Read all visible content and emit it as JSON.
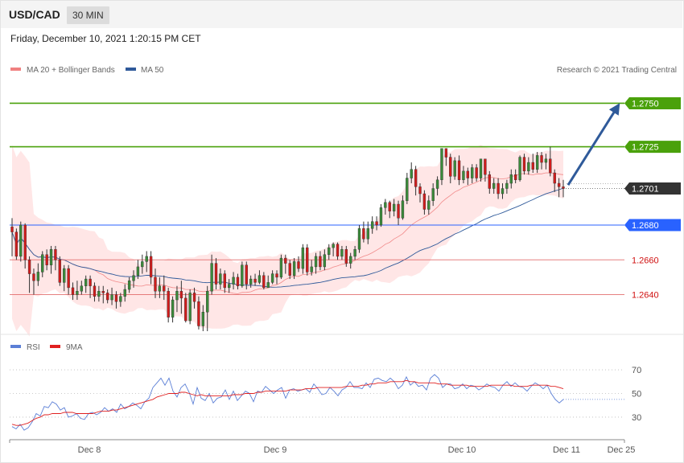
{
  "header": {
    "symbol": "USD/CAD",
    "timeframe": "30 MIN"
  },
  "datetime": "Friday, December 10, 2021 1:20:15 PM CET",
  "legend": {
    "ma20": {
      "label": "MA 20 + Bollinger Bands",
      "color": "#f08080"
    },
    "ma50": {
      "label": "MA 50",
      "color": "#2f5a9a"
    },
    "rsi": {
      "label": "RSI",
      "color": "#5b7fd6"
    },
    "ma9": {
      "label": "9MA",
      "color": "#e02020"
    }
  },
  "copyright": "Research © 2021 Trading Central",
  "chart_data": {
    "type": "candlestick",
    "price_range": [
      1.2619,
      1.2765
    ],
    "levels": [
      {
        "value": 1.275,
        "label": "1.2750",
        "kind": "resistance",
        "color": "#4aa10b"
      },
      {
        "value": 1.2725,
        "label": "1.2725",
        "kind": "resistance",
        "color": "#4aa10b"
      },
      {
        "value": 1.2701,
        "label": "1.2701",
        "kind": "current",
        "color": "#333333"
      },
      {
        "value": 1.268,
        "label": "1.2680",
        "kind": "pivot",
        "color": "#2962ff"
      },
      {
        "value": 1.266,
        "label": "1.2660",
        "kind": "support",
        "color": "#e06060"
      },
      {
        "value": 1.264,
        "label": "1.2640",
        "kind": "support",
        "color": "#e06060"
      }
    ],
    "projection": {
      "from": 1.2703,
      "to": 1.2747
    },
    "candles": [
      [
        1.2679,
        1.2676,
        1.2684,
        1.2662
      ],
      [
        1.2676,
        1.2662,
        1.2678,
        1.266
      ],
      [
        1.2662,
        1.268,
        1.2682,
        1.2659
      ],
      [
        1.268,
        1.266,
        1.2681,
        1.2655
      ],
      [
        1.266,
        1.2652,
        1.2662,
        1.2641
      ],
      [
        1.2652,
        1.2648,
        1.2655,
        1.264
      ],
      [
        1.2648,
        1.2653,
        1.2658,
        1.2645
      ],
      [
        1.2653,
        1.2663,
        1.2665,
        1.265
      ],
      [
        1.2663,
        1.2657,
        1.2666,
        1.2654
      ],
      [
        1.2657,
        1.2666,
        1.2668,
        1.2652
      ],
      [
        1.2666,
        1.266,
        1.2668,
        1.2654
      ],
      [
        1.266,
        1.2647,
        1.2662,
        1.2645
      ],
      [
        1.2647,
        1.2655,
        1.2657,
        1.2642
      ],
      [
        1.2655,
        1.2644,
        1.2657,
        1.264
      ],
      [
        1.2644,
        1.264,
        1.2647,
        1.2637
      ],
      [
        1.264,
        1.2642,
        1.2648,
        1.2637
      ],
      [
        1.2642,
        1.2645,
        1.2648,
        1.264
      ],
      [
        1.2645,
        1.2649,
        1.2651,
        1.2641
      ],
      [
        1.2649,
        1.2645,
        1.2651,
        1.2638
      ],
      [
        1.2645,
        1.2639,
        1.2647,
        1.2636
      ],
      [
        1.2639,
        1.2642,
        1.2645,
        1.2636
      ],
      [
        1.2642,
        1.2641,
        1.2645,
        1.2635
      ],
      [
        1.2641,
        1.2637,
        1.2643,
        1.2635
      ],
      [
        1.2637,
        1.264,
        1.2644,
        1.2634
      ],
      [
        1.264,
        1.2636,
        1.2642,
        1.2632
      ],
      [
        1.2636,
        1.2639,
        1.2641,
        1.2633
      ],
      [
        1.2639,
        1.2643,
        1.2646,
        1.2636
      ],
      [
        1.2643,
        1.2648,
        1.265,
        1.2641
      ],
      [
        1.2648,
        1.2651,
        1.2654,
        1.2644
      ],
      [
        1.2651,
        1.2656,
        1.266,
        1.2649
      ],
      [
        1.2656,
        1.2659,
        1.2663,
        1.2652
      ],
      [
        1.2659,
        1.2662,
        1.2665,
        1.2653
      ],
      [
        1.2662,
        1.265,
        1.2665,
        1.2646
      ],
      [
        1.265,
        1.2642,
        1.2655,
        1.2638
      ],
      [
        1.2642,
        1.2645,
        1.265,
        1.2638
      ],
      [
        1.2645,
        1.2642,
        1.2651,
        1.2637
      ],
      [
        1.2642,
        1.2627,
        1.2644,
        1.2624
      ],
      [
        1.2627,
        1.2637,
        1.2639,
        1.2624
      ],
      [
        1.2637,
        1.2642,
        1.2645,
        1.263
      ],
      [
        1.2642,
        1.2638,
        1.2648,
        1.2629
      ],
      [
        1.2638,
        1.2625,
        1.2641,
        1.2624
      ],
      [
        1.2625,
        1.2641,
        1.2643,
        1.2623
      ],
      [
        1.2641,
        1.2636,
        1.2644,
        1.2632
      ],
      [
        1.2636,
        1.2622,
        1.2639,
        1.262
      ],
      [
        1.2622,
        1.263,
        1.2634,
        1.2619
      ],
      [
        1.263,
        1.2642,
        1.2645,
        1.2619
      ],
      [
        1.2642,
        1.2658,
        1.2663,
        1.264
      ],
      [
        1.2658,
        1.2646,
        1.2661,
        1.2643
      ],
      [
        1.2646,
        1.2652,
        1.2655,
        1.2643
      ],
      [
        1.2652,
        1.2644,
        1.2654,
        1.2641
      ],
      [
        1.2644,
        1.2646,
        1.2649,
        1.2641
      ],
      [
        1.2646,
        1.265,
        1.2653,
        1.2643
      ],
      [
        1.265,
        1.2645,
        1.2652,
        1.2643
      ],
      [
        1.2645,
        1.2657,
        1.2659,
        1.2644
      ],
      [
        1.2657,
        1.2646,
        1.2659,
        1.2643
      ],
      [
        1.2646,
        1.2649,
        1.2651,
        1.2644
      ],
      [
        1.2649,
        1.2647,
        1.2652,
        1.2645
      ],
      [
        1.2647,
        1.2651,
        1.2654,
        1.2646
      ],
      [
        1.2651,
        1.2644,
        1.2653,
        1.2643
      ],
      [
        1.2644,
        1.2647,
        1.2651,
        1.2644
      ],
      [
        1.2647,
        1.2652,
        1.2654,
        1.2646
      ],
      [
        1.2652,
        1.265,
        1.2654,
        1.2646
      ],
      [
        1.265,
        1.2661,
        1.2663,
        1.2649
      ],
      [
        1.2661,
        1.2658,
        1.2663,
        1.2652
      ],
      [
        1.2658,
        1.2651,
        1.266,
        1.2649
      ],
      [
        1.2651,
        1.2659,
        1.2661,
        1.2649
      ],
      [
        1.2659,
        1.2655,
        1.2662,
        1.2653
      ],
      [
        1.2655,
        1.2667,
        1.2669,
        1.2652
      ],
      [
        1.2667,
        1.2653,
        1.2669,
        1.2651
      ],
      [
        1.2653,
        1.2656,
        1.266,
        1.2651
      ],
      [
        1.2656,
        1.2662,
        1.2664,
        1.2652
      ],
      [
        1.2662,
        1.2656,
        1.2665,
        1.2654
      ],
      [
        1.2656,
        1.2663,
        1.2666,
        1.2654
      ],
      [
        1.2663,
        1.2667,
        1.2669,
        1.266
      ],
      [
        1.2667,
        1.2669,
        1.267,
        1.2662
      ],
      [
        1.2669,
        1.2662,
        1.267,
        1.266
      ],
      [
        1.2662,
        1.2666,
        1.2668,
        1.266
      ],
      [
        1.2666,
        1.2658,
        1.2668,
        1.2656
      ],
      [
        1.2658,
        1.2662,
        1.2664,
        1.2655
      ],
      [
        1.2662,
        1.2666,
        1.2668,
        1.266
      ],
      [
        1.2666,
        1.2678,
        1.268,
        1.2664
      ],
      [
        1.2678,
        1.2672,
        1.2682,
        1.267
      ],
      [
        1.2672,
        1.2678,
        1.2682,
        1.2669
      ],
      [
        1.2678,
        1.2682,
        1.2685,
        1.2675
      ],
      [
        1.2682,
        1.268,
        1.2685,
        1.2677
      ],
      [
        1.268,
        1.269,
        1.2692,
        1.2679
      ],
      [
        1.269,
        1.2693,
        1.2695,
        1.2686
      ],
      [
        1.2693,
        1.2688,
        1.2694,
        1.2684
      ],
      [
        1.2688,
        1.2692,
        1.2695,
        1.2685
      ],
      [
        1.2692,
        1.2684,
        1.2694,
        1.268
      ],
      [
        1.2684,
        1.2694,
        1.2697,
        1.2683
      ],
      [
        1.2694,
        1.2707,
        1.271,
        1.2692
      ],
      [
        1.2707,
        1.2712,
        1.2716,
        1.2704
      ],
      [
        1.2712,
        1.2702,
        1.2714,
        1.2697
      ],
      [
        1.2702,
        1.2698,
        1.2704,
        1.2693
      ],
      [
        1.2698,
        1.2689,
        1.27,
        1.2686
      ],
      [
        1.2689,
        1.2694,
        1.2697,
        1.2686
      ],
      [
        1.2694,
        1.2701,
        1.2704,
        1.2691
      ],
      [
        1.2701,
        1.2706,
        1.2708,
        1.2697
      ],
      [
        1.2706,
        1.2724,
        1.2724,
        1.2703
      ],
      [
        1.2724,
        1.2719,
        1.2724,
        1.2714
      ],
      [
        1.2719,
        1.2708,
        1.2721,
        1.2704
      ],
      [
        1.2708,
        1.2717,
        1.2719,
        1.2706
      ],
      [
        1.2717,
        1.2706,
        1.272,
        1.2703
      ],
      [
        1.2706,
        1.2711,
        1.2714,
        1.2704
      ],
      [
        1.2711,
        1.2707,
        1.2713,
        1.2703
      ],
      [
        1.2707,
        1.2713,
        1.2715,
        1.2704
      ],
      [
        1.2713,
        1.2707,
        1.2715,
        1.2705
      ],
      [
        1.2707,
        1.2718,
        1.2718,
        1.2705
      ],
      [
        1.2718,
        1.2709,
        1.2718,
        1.2705
      ],
      [
        1.2709,
        1.2701,
        1.2711,
        1.2698
      ],
      [
        1.2701,
        1.2704,
        1.2707,
        1.2698
      ],
      [
        1.2704,
        1.2698,
        1.2707,
        1.2695
      ],
      [
        1.2698,
        1.2701,
        1.2704,
        1.2695
      ],
      [
        1.2701,
        1.2704,
        1.2706,
        1.2698
      ],
      [
        1.2704,
        1.2709,
        1.2712,
        1.2701
      ],
      [
        1.2709,
        1.2706,
        1.2712,
        1.2704
      ],
      [
        1.2706,
        1.2719,
        1.272,
        1.2705
      ],
      [
        1.2719,
        1.2711,
        1.2721,
        1.2709
      ],
      [
        1.2711,
        1.2716,
        1.2719,
        1.2709
      ],
      [
        1.2716,
        1.2712,
        1.2721,
        1.271
      ],
      [
        1.2712,
        1.272,
        1.2722,
        1.271
      ],
      [
        1.272,
        1.2716,
        1.2722,
        1.2712
      ],
      [
        1.2716,
        1.2718,
        1.2721,
        1.2712
      ],
      [
        1.2718,
        1.271,
        1.2725,
        1.2708
      ],
      [
        1.271,
        1.2704,
        1.2712,
        1.2699
      ],
      [
        1.2704,
        1.2702,
        1.2707,
        1.2696
      ],
      [
        1.2702,
        1.2701,
        1.2706,
        1.2696
      ]
    ],
    "rsi": {
      "ticks": [
        "70",
        "50",
        "30"
      ],
      "range": [
        15,
        85
      ],
      "values": [
        22,
        20,
        24,
        19,
        21,
        26,
        33,
        31,
        39,
        38,
        43,
        41,
        36,
        38,
        30,
        31,
        33,
        29,
        28,
        33,
        34,
        32,
        34,
        38,
        35,
        37,
        34,
        41,
        37,
        39,
        42,
        40,
        37,
        43,
        46,
        55,
        59,
        63,
        57,
        63,
        52,
        47,
        55,
        58,
        51,
        41,
        55,
        46,
        44,
        50,
        42,
        46,
        47,
        53,
        45,
        52,
        44,
        48,
        52,
        50,
        43,
        52,
        51,
        56,
        53,
        50,
        53,
        55,
        46,
        53,
        54,
        52,
        53,
        54,
        51,
        58,
        54,
        49,
        50,
        55,
        52,
        48,
        53,
        55,
        60,
        55,
        55,
        54,
        59,
        55,
        62,
        63,
        61,
        60,
        63,
        60,
        54,
        57,
        64,
        57,
        60,
        56,
        57,
        53,
        63,
        66,
        63,
        55,
        58,
        58,
        54,
        55,
        58,
        54,
        57,
        56,
        53,
        55,
        58,
        56,
        55,
        52,
        57,
        60,
        56,
        59,
        56,
        55,
        52,
        56,
        59,
        57,
        54,
        57,
        50,
        45,
        42,
        45
      ],
      "ma9_values": [
        24,
        23,
        23,
        24,
        25,
        27,
        29,
        30,
        32,
        32,
        33,
        33,
        33,
        34,
        34,
        34,
        33,
        33,
        33,
        33,
        33,
        34,
        35,
        35,
        35,
        36,
        36,
        37,
        38,
        39,
        40,
        41,
        42,
        43,
        44,
        45,
        47,
        48,
        49,
        50,
        50,
        50,
        51,
        51,
        50,
        49,
        48,
        49,
        48,
        48,
        48,
        48,
        48,
        48,
        48,
        49,
        49,
        49,
        50,
        50,
        50,
        51,
        51,
        52,
        52,
        52,
        52,
        52,
        52,
        53,
        53,
        53,
        53,
        54,
        54,
        54,
        55,
        55,
        55,
        55,
        55,
        55,
        55,
        56,
        56,
        56,
        56,
        57,
        57,
        58,
        58,
        59,
        59,
        59,
        60,
        60,
        60,
        60,
        61,
        60,
        60,
        59,
        59,
        59,
        59,
        59,
        58,
        58,
        58,
        57,
        57,
        57,
        57,
        57,
        56,
        56,
        56,
        56,
        56,
        57,
        57,
        57,
        57,
        57,
        57,
        56,
        56,
        56,
        56,
        57,
        57,
        57,
        57,
        57,
        56,
        56,
        55,
        54
      ]
    },
    "x_ticks": [
      "Dec 8",
      "Dec 9",
      "Dec 10",
      "Dec 11",
      "Dec 25"
    ]
  }
}
